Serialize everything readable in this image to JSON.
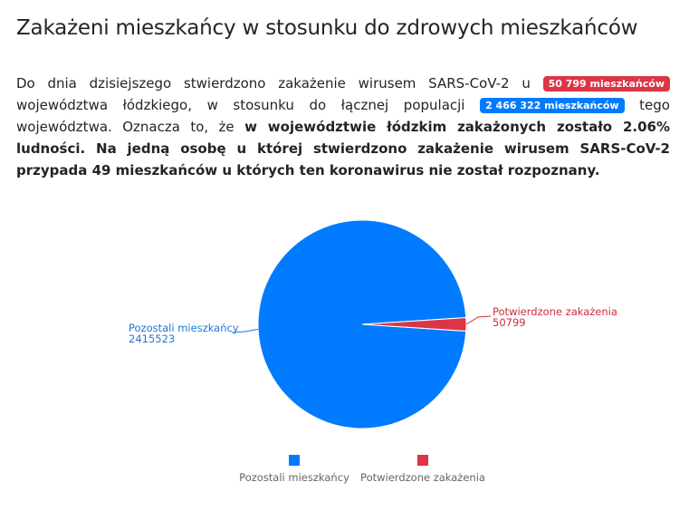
{
  "heading": "Zakażeni mieszkańcy w stosunku do zdrowych mieszkańców",
  "paragraph": {
    "part1": "Do dnia dzisiejszego stwierdzono zakażenie wirusem SARS-CoV-2 u ",
    "badge_infected": "50 799 mieszkańców",
    "part2": " województwa łódzkiego, w stosunku do łącznej populacji ",
    "badge_population": "2 466 322 mieszkańców",
    "part3": " tego województwa. Oznacza to, że ",
    "bold": "w województwie łódzkim zakażonych zostało 2.06% ludności. Na jedną osobę u której stwierdzono zakażenie wirusem SARS-CoV-2 przypada 49 mieszkańców u których ten koronawirus nie został rozpoznany."
  },
  "colors": {
    "red": "#dc3545",
    "blue": "#007bff",
    "healthy_label": "#1f78d1",
    "infected_label": "#d02c3c"
  },
  "chart_data": {
    "type": "pie",
    "slices": [
      {
        "label": "Pozostali mieszkańcy",
        "value": 2415523,
        "value_text": "2415523",
        "color": "#007bff"
      },
      {
        "label": "Potwierdzone zakażenia",
        "value": 50799,
        "value_text": "50799",
        "color": "#dc3545"
      }
    ],
    "legend": {
      "position": "bottom",
      "items": [
        "Pozostali mieszkańcy",
        "Potwierdzone zakażenia"
      ]
    }
  }
}
